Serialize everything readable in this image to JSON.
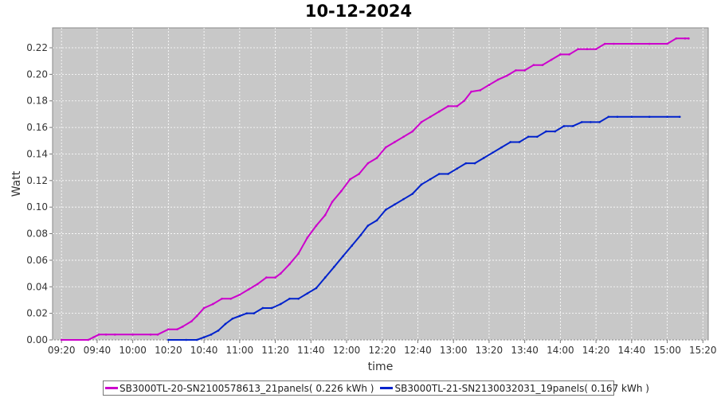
{
  "chart_data": {
    "type": "line",
    "title": "10-12-2024",
    "xlabel": "time",
    "ylabel": "Watt",
    "ylim": [
      0,
      0.235
    ],
    "xlim": [
      "09:15",
      "15:23"
    ],
    "x_ticks": [
      "09:20",
      "09:40",
      "10:00",
      "10:20",
      "10:40",
      "11:00",
      "11:20",
      "11:40",
      "12:00",
      "12:20",
      "12:40",
      "13:00",
      "13:20",
      "13:40",
      "14:00",
      "14:20",
      "14:40",
      "15:00",
      "15:20"
    ],
    "y_ticks": [
      "0.00",
      "0.02",
      "0.04",
      "0.06",
      "0.08",
      "0.10",
      "0.12",
      "0.14",
      "0.16",
      "0.18",
      "0.20",
      "0.22"
    ],
    "grid": true,
    "background": "#c8c8c8",
    "legend_position": "bottom",
    "series": [
      {
        "name": "SB3000TL-20-SN2100578613_21panels( 0.226 kWh )",
        "color": "#cc00cc",
        "points": [
          [
            "09:20",
            0.0
          ],
          [
            "09:35",
            0.0
          ],
          [
            "09:38",
            0.002
          ],
          [
            "09:41",
            0.004
          ],
          [
            "09:45",
            0.004
          ],
          [
            "09:50",
            0.004
          ],
          [
            "10:00",
            0.004
          ],
          [
            "10:10",
            0.004
          ],
          [
            "10:14",
            0.004
          ],
          [
            "10:20",
            0.008
          ],
          [
            "10:25",
            0.008
          ],
          [
            "10:28",
            0.01
          ],
          [
            "10:33",
            0.014
          ],
          [
            "10:36",
            0.018
          ],
          [
            "10:40",
            0.024
          ],
          [
            "10:45",
            0.027
          ],
          [
            "10:50",
            0.031
          ],
          [
            "10:55",
            0.031
          ],
          [
            "11:00",
            0.034
          ],
          [
            "11:05",
            0.038
          ],
          [
            "11:10",
            0.042
          ],
          [
            "11:15",
            0.047
          ],
          [
            "11:20",
            0.047
          ],
          [
            "11:23",
            0.05
          ],
          [
            "11:28",
            0.057
          ],
          [
            "11:33",
            0.065
          ],
          [
            "11:38",
            0.077
          ],
          [
            "11:43",
            0.086
          ],
          [
            "11:48",
            0.094
          ],
          [
            "11:52",
            0.104
          ],
          [
            "11:57",
            0.112
          ],
          [
            "12:02",
            0.121
          ],
          [
            "12:07",
            0.125
          ],
          [
            "12:12",
            0.133
          ],
          [
            "12:17",
            0.137
          ],
          [
            "12:22",
            0.145
          ],
          [
            "12:27",
            0.149
          ],
          [
            "12:32",
            0.153
          ],
          [
            "12:37",
            0.157
          ],
          [
            "12:42",
            0.164
          ],
          [
            "12:47",
            0.168
          ],
          [
            "12:52",
            0.172
          ],
          [
            "12:57",
            0.176
          ],
          [
            "13:02",
            0.176
          ],
          [
            "13:06",
            0.18
          ],
          [
            "13:10",
            0.187
          ],
          [
            "13:15",
            0.188
          ],
          [
            "13:20",
            0.192
          ],
          [
            "13:25",
            0.196
          ],
          [
            "13:30",
            0.199
          ],
          [
            "13:35",
            0.203
          ],
          [
            "13:40",
            0.203
          ],
          [
            "13:45",
            0.207
          ],
          [
            "13:50",
            0.207
          ],
          [
            "13:55",
            0.211
          ],
          [
            "14:00",
            0.215
          ],
          [
            "14:05",
            0.215
          ],
          [
            "14:10",
            0.219
          ],
          [
            "14:15",
            0.219
          ],
          [
            "14:20",
            0.219
          ],
          [
            "14:25",
            0.223
          ],
          [
            "14:30",
            0.223
          ],
          [
            "14:40",
            0.223
          ],
          [
            "14:50",
            0.223
          ],
          [
            "15:00",
            0.223
          ],
          [
            "15:05",
            0.227
          ],
          [
            "15:10",
            0.227
          ],
          [
            "15:12",
            0.227
          ]
        ]
      },
      {
        "name": "SB3000TL-21-SN2130032031_19panels( 0.167 kWh )",
        "color": "#0022cc",
        "points": [
          [
            "10:20",
            0.0
          ],
          [
            "10:30",
            0.0
          ],
          [
            "10:36",
            0.0
          ],
          [
            "10:40",
            0.002
          ],
          [
            "10:44",
            0.004
          ],
          [
            "10:48",
            0.007
          ],
          [
            "10:52",
            0.012
          ],
          [
            "10:56",
            0.016
          ],
          [
            "11:00",
            0.018
          ],
          [
            "11:04",
            0.02
          ],
          [
            "11:08",
            0.02
          ],
          [
            "11:13",
            0.024
          ],
          [
            "11:18",
            0.024
          ],
          [
            "11:23",
            0.027
          ],
          [
            "11:28",
            0.031
          ],
          [
            "11:33",
            0.031
          ],
          [
            "11:38",
            0.035
          ],
          [
            "11:43",
            0.039
          ],
          [
            "11:48",
            0.047
          ],
          [
            "11:53",
            0.055
          ],
          [
            "11:58",
            0.063
          ],
          [
            "12:03",
            0.071
          ],
          [
            "12:08",
            0.079
          ],
          [
            "12:12",
            0.086
          ],
          [
            "12:17",
            0.09
          ],
          [
            "12:22",
            0.098
          ],
          [
            "12:27",
            0.102
          ],
          [
            "12:32",
            0.106
          ],
          [
            "12:37",
            0.11
          ],
          [
            "12:42",
            0.117
          ],
          [
            "12:47",
            0.121
          ],
          [
            "12:52",
            0.125
          ],
          [
            "12:57",
            0.125
          ],
          [
            "13:02",
            0.129
          ],
          [
            "13:07",
            0.133
          ],
          [
            "13:12",
            0.133
          ],
          [
            "13:17",
            0.137
          ],
          [
            "13:22",
            0.141
          ],
          [
            "13:27",
            0.145
          ],
          [
            "13:32",
            0.149
          ],
          [
            "13:37",
            0.149
          ],
          [
            "13:42",
            0.153
          ],
          [
            "13:47",
            0.153
          ],
          [
            "13:52",
            0.157
          ],
          [
            "13:57",
            0.157
          ],
          [
            "14:02",
            0.161
          ],
          [
            "14:07",
            0.161
          ],
          [
            "14:12",
            0.164
          ],
          [
            "14:17",
            0.164
          ],
          [
            "14:22",
            0.164
          ],
          [
            "14:27",
            0.168
          ],
          [
            "14:32",
            0.168
          ],
          [
            "14:40",
            0.168
          ],
          [
            "14:50",
            0.168
          ],
          [
            "15:00",
            0.168
          ],
          [
            "15:07",
            0.168
          ]
        ]
      }
    ]
  }
}
